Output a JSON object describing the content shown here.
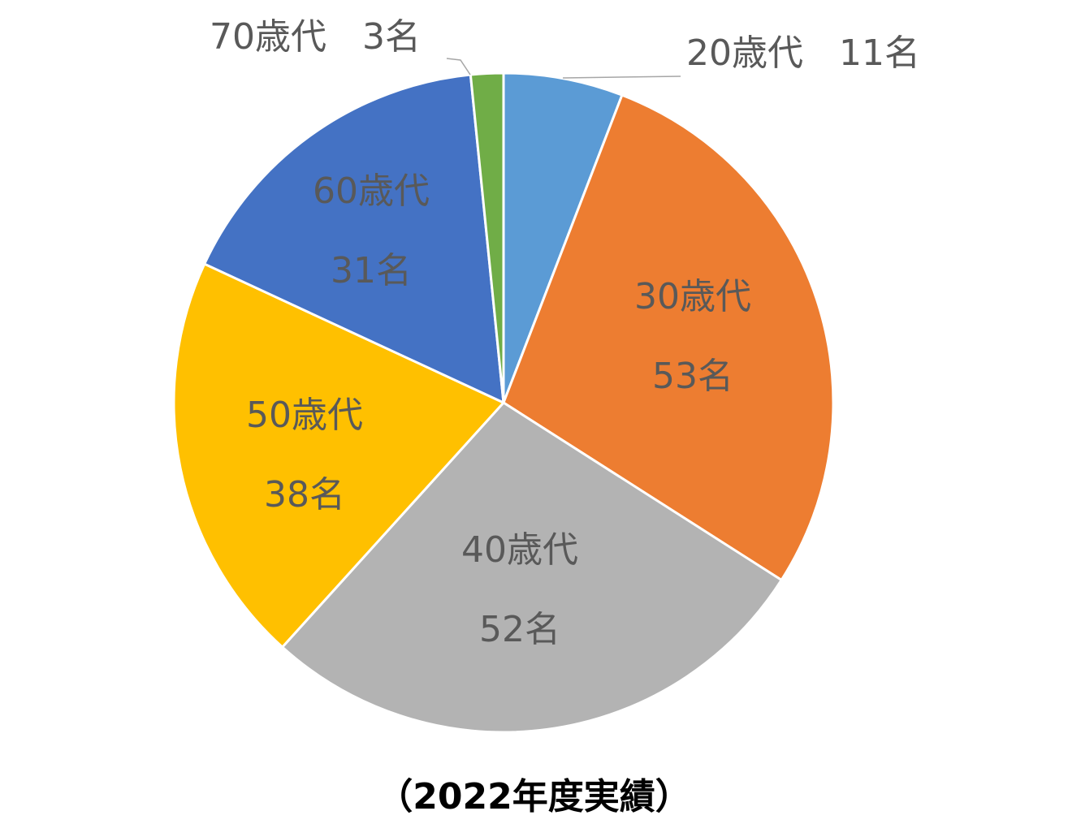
{
  "chart_data": {
    "type": "pie",
    "title": "",
    "caption": "（2022年度実績）",
    "start_angle": "12 o'clock",
    "direction": "clockwise",
    "slices": [
      {
        "category": "20歳代",
        "value": 11,
        "value_label": "11名",
        "color": "#5B9BD5"
      },
      {
        "category": "30歳代",
        "value": 53,
        "value_label": "53名",
        "color": "#ED7D31"
      },
      {
        "category": "40歳代",
        "value": 52,
        "value_label": "52名",
        "color": "#B3B3B3"
      },
      {
        "category": "50歳代",
        "value": 38,
        "value_label": "38名",
        "color": "#FFC000"
      },
      {
        "category": "60歳代",
        "value": 31,
        "value_label": "31名",
        "color": "#4472C4"
      },
      {
        "category": "70歳代",
        "value": 3,
        "value_label": "3名",
        "color": "#70AD47"
      }
    ]
  }
}
